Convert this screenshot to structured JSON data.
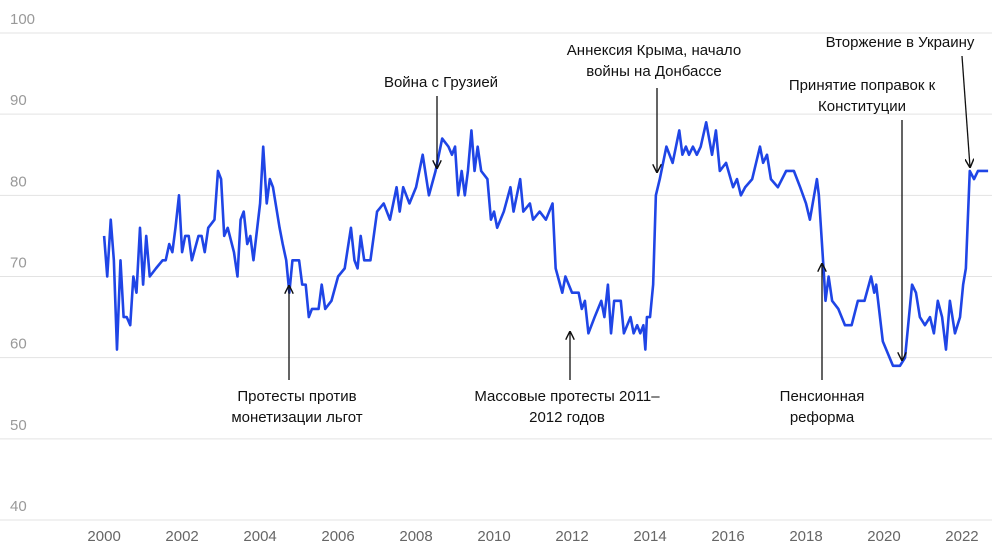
{
  "chart_data": {
    "type": "line",
    "xlim": [
      1997.33,
      2022.77
    ],
    "xticks": [
      2000,
      2002,
      2004,
      2006,
      2008,
      2010,
      2012,
      2014,
      2016,
      2018,
      2020,
      2022
    ],
    "ylim": [
      40,
      100
    ],
    "yticks": [
      40,
      50,
      60,
      70,
      80,
      90,
      100
    ],
    "grid": true,
    "color": "#1f45e6",
    "x": [
      2000.0,
      2000.08,
      2000.17,
      2000.25,
      2000.33,
      2000.42,
      2000.5,
      2000.58,
      2000.67,
      2000.75,
      2000.83,
      2000.92,
      2001.0,
      2001.08,
      2001.17,
      2001.33,
      2001.5,
      2001.58,
      2001.67,
      2001.75,
      2001.83,
      2001.92,
      2002.0,
      2002.08,
      2002.17,
      2002.25,
      2002.42,
      2002.5,
      2002.58,
      2002.67,
      2002.83,
      2002.92,
      2003.0,
      2003.08,
      2003.17,
      2003.33,
      2003.42,
      2003.5,
      2003.58,
      2003.67,
      2003.75,
      2003.83,
      2004.0,
      2004.08,
      2004.17,
      2004.25,
      2004.33,
      2004.5,
      2004.58,
      2004.67,
      2004.75,
      2004.83,
      2005.0,
      2005.08,
      2005.17,
      2005.25,
      2005.33,
      2005.5,
      2005.58,
      2005.67,
      2005.83,
      2006.0,
      2006.17,
      2006.33,
      2006.42,
      2006.5,
      2006.58,
      2006.67,
      2006.83,
      2007.0,
      2007.17,
      2007.33,
      2007.5,
      2007.58,
      2007.67,
      2007.83,
      2008.0,
      2008.17,
      2008.33,
      2008.5,
      2008.67,
      2008.83,
      2008.92,
      2009.0,
      2009.08,
      2009.17,
      2009.25,
      2009.33,
      2009.42,
      2009.5,
      2009.58,
      2009.67,
      2009.83,
      2009.92,
      2010.0,
      2010.08,
      2010.25,
      2010.42,
      2010.5,
      2010.67,
      2010.75,
      2010.92,
      2011.0,
      2011.17,
      2011.33,
      2011.5,
      2011.58,
      2011.75,
      2011.83,
      2012.0,
      2012.17,
      2012.25,
      2012.33,
      2012.42,
      2012.58,
      2012.75,
      2012.83,
      2012.92,
      2013.0,
      2013.08,
      2013.25,
      2013.33,
      2013.5,
      2013.58,
      2013.67,
      2013.75,
      2013.83,
      2013.88,
      2013.92,
      2014.0,
      2014.08,
      2014.15,
      2014.25,
      2014.42,
      2014.5,
      2014.58,
      2014.75,
      2014.83,
      2014.92,
      2015.0,
      2015.1,
      2015.2,
      2015.3,
      2015.44,
      2015.59,
      2015.69,
      2015.79,
      2015.95,
      2016.13,
      2016.23,
      2016.33,
      2016.44,
      2016.62,
      2016.82,
      2016.9,
      2017.0,
      2017.1,
      2017.28,
      2017.49,
      2017.69,
      2017.85,
      2018.0,
      2018.1,
      2018.28,
      2018.33,
      2018.45,
      2018.5,
      2018.58,
      2018.67,
      2018.83,
      2019.0,
      2019.17,
      2019.33,
      2019.5,
      2019.67,
      2019.75,
      2019.8,
      2019.97,
      2020.23,
      2020.41,
      2020.54,
      2020.62,
      2020.72,
      2020.82,
      2020.92,
      2021.05,
      2021.18,
      2021.28,
      2021.38,
      2021.49,
      2021.59,
      2021.69,
      2021.82,
      2021.95,
      2022.03,
      2022.1,
      2022.2,
      2022.31,
      2022.41,
      2022.67
    ],
    "values": [
      75,
      70,
      77,
      72,
      61,
      72,
      65,
      65,
      64,
      70,
      68,
      76,
      69,
      75,
      70,
      71,
      72,
      72,
      74,
      73,
      76,
      80,
      73,
      75,
      75,
      72,
      75,
      75,
      73,
      76,
      77,
      83,
      82,
      75,
      76,
      73,
      70,
      77,
      78,
      74,
      75,
      72,
      79,
      86,
      79,
      82,
      81,
      76,
      74,
      72,
      68,
      72,
      72,
      69,
      69,
      65,
      66,
      66,
      69,
      66,
      67,
      70,
      71,
      76,
      72,
      71,
      75,
      72,
      72,
      78,
      79,
      77,
      81,
      78,
      81,
      79,
      81,
      85,
      80,
      83,
      87,
      86,
      85,
      86,
      80,
      83,
      80,
      83,
      88,
      83,
      86,
      83,
      82,
      77,
      78,
      76,
      78,
      81,
      78,
      82,
      78,
      79,
      77,
      78,
      77,
      79,
      71,
      68,
      70,
      68,
      68,
      66,
      67,
      63,
      65,
      67,
      65,
      69,
      63,
      67,
      67,
      63,
      65,
      63,
      64,
      63,
      64,
      61,
      65,
      65,
      69,
      80,
      82,
      86,
      85,
      84,
      88,
      85,
      86,
      85,
      86,
      85,
      86,
      89,
      85,
      88,
      83,
      84,
      81,
      82,
      80,
      81,
      82,
      86,
      84,
      85,
      82,
      81,
      83,
      83,
      81,
      79,
      77,
      82,
      80,
      71,
      67,
      70,
      67,
      66,
      64,
      64,
      67,
      67,
      70,
      68,
      69,
      62,
      59,
      59,
      60,
      64,
      69,
      68,
      65,
      64,
      65,
      63,
      67,
      65,
      61,
      67,
      63,
      65,
      69,
      71,
      83,
      82,
      83,
      83
    ],
    "annotations": [
      {
        "text": [
          "Протесты против",
          "монетизации льгот"
        ]
      },
      {
        "text": [
          "Война с Грузией"
        ]
      },
      {
        "text": [
          "Массовые протесты 2011–",
          "2012 годов"
        ]
      },
      {
        "text": [
          "Аннексия Крыма, начало",
          "войны на Донбассе"
        ]
      },
      {
        "text": [
          "Принятие поправок к",
          "Конституции"
        ]
      },
      {
        "text": [
          "Пенсионная",
          "реформа"
        ]
      },
      {
        "text": [
          "Вторжение в Украину"
        ]
      }
    ]
  }
}
